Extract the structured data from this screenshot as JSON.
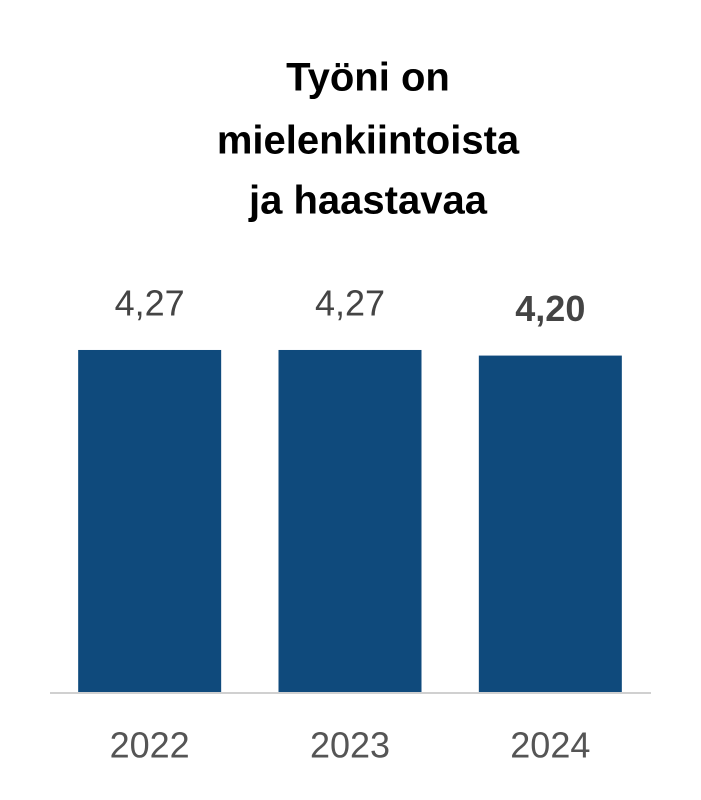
{
  "chart_data": {
    "type": "bar",
    "title": [
      "Työni on",
      "mielenkiintoista",
      "ja haastavaa"
    ],
    "categories": [
      "2022",
      "2023",
      "2024"
    ],
    "values": [
      4.27,
      4.27,
      4.2
    ],
    "value_labels": [
      "4,27",
      "4,27",
      "4,20"
    ],
    "highlight_index": 2,
    "color": "#0f4a7c",
    "ylim": [
      0,
      5
    ]
  }
}
